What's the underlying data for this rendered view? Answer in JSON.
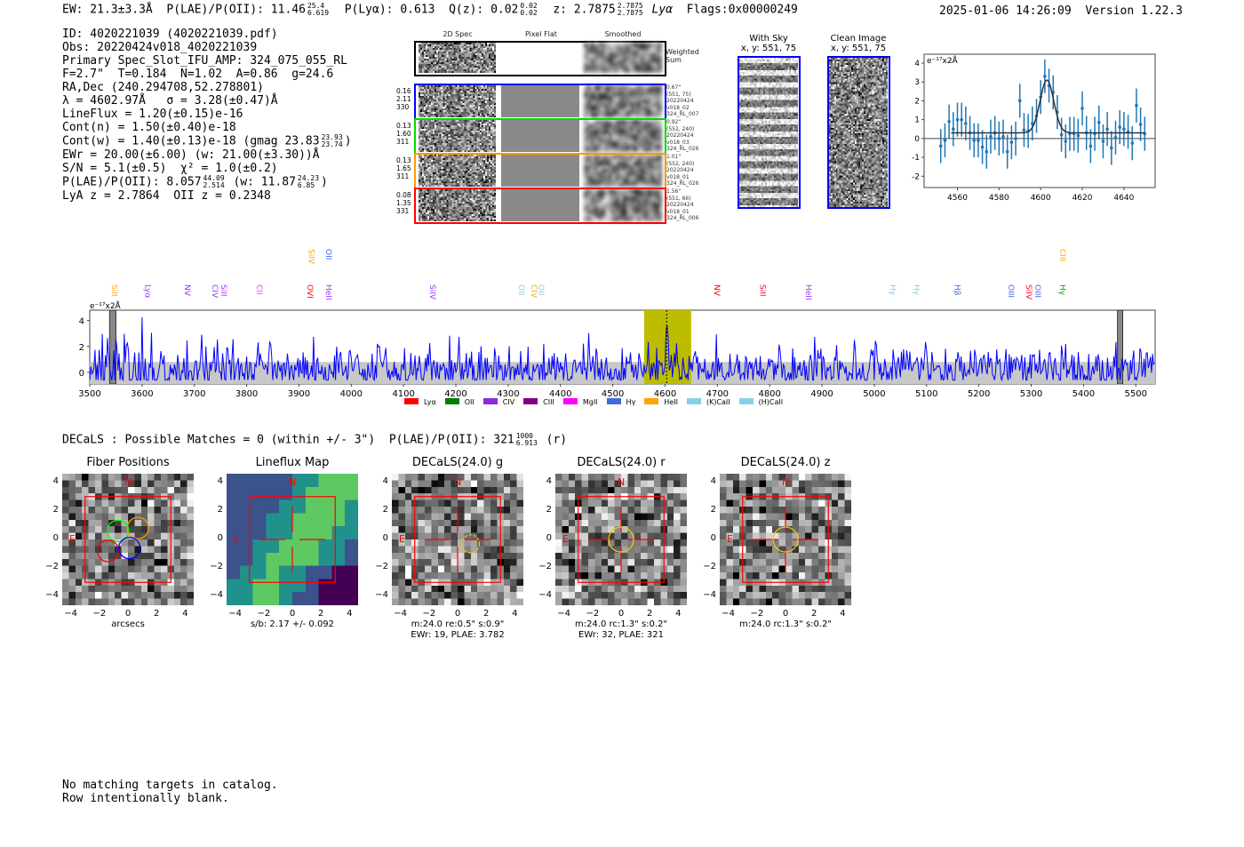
{
  "header": {
    "ew": "EW: 21.3±3.3Å",
    "plae_label": "P(LAE)/P(OII): 11.46",
    "plae_hi": "25.4",
    "plae_lo": "6.619",
    "plya": "P(Lyα): 0.613",
    "qz": "Q(z): 0.02",
    "qz_hi": "0.02",
    "qz_lo": "0.02",
    "z": "z: 2.7875",
    "z_hi": "2.7875",
    "z_lo": "2.7875",
    "z_line": "Lyα",
    "flags": "Flags:0x00000249",
    "timestamp": "2025-01-06 14:26:09",
    "version": "Version 1.22.3"
  },
  "info": {
    "id": "ID: 4020221039 (4020221039.pdf)",
    "obs": "Obs: 20220424v018_4020221039",
    "primary": "Primary Spec_Slot_IFU_AMP: 324_075_055_RL",
    "params": "F=2.7\"  T=0.184  N=1.02  A=0.86  g=24.6",
    "radec": "RA,Dec (240.294708,52.278801)",
    "lambda": "λ = 4602.97Å   σ = 3.28(±0.47)Å",
    "lineflux": "LineFlux = 1.20(±0.15)e-16",
    "contn": "Cont(n) = 1.50(±0.40)e-18",
    "contw": "Cont(w) = 1.40(±0.13)e-18 (gmag 23.83",
    "gmag_hi": "23.93",
    "gmag_lo": "23.74",
    "ewr": "EWr = 20.00(±6.00) (w: 21.00(±3.30))Å",
    "sn": "S/N = 5.1(±0.5)  χ² = 1.0(±0.2)",
    "plae": "P(LAE)/P(OII): 8.057",
    "plae_hi": "44.09",
    "plae_lo": "2.514",
    "plae_w": "(w: 11.87",
    "plae_w_hi": "24.23",
    "plae_w_lo": "6.85",
    "z": "LyA z = 2.7864  OII z = 0.2348"
  },
  "spec2d": {
    "titles": [
      "2D Spec",
      "Pixel Flat",
      "Smoothed"
    ],
    "weighted": "Weighted Sum",
    "rows": [
      {
        "color": "#0000ff",
        "left": [
          "0.16",
          "2.11",
          "330"
        ],
        "right": [
          "0.67\"",
          "(551, 75)",
          "20220424",
          "v018_02",
          "324_RL_007"
        ]
      },
      {
        "color": "#00dd00",
        "left": [
          "0.13",
          "1.60",
          "311"
        ],
        "right": [
          "0.92\"",
          "(552, 240)",
          "20220424",
          "v018_03",
          "324_RL_026"
        ]
      },
      {
        "color": "#ff9900",
        "left": [
          "0.13",
          "1.65",
          "311"
        ],
        "right": [
          "1.01\"",
          "(552, 240)",
          "20220424",
          "v018_01",
          "324_RL_026"
        ]
      },
      {
        "color": "#ff0000",
        "left": [
          "0.08",
          "1.35",
          "331"
        ],
        "right": [
          "1.56\"",
          "(551, 66)",
          "20220424",
          "v018_01",
          "324_RL_006"
        ]
      }
    ]
  },
  "sky": {
    "with_sky": "With Sky",
    "with_sky_xy": "x, y: 551, 75",
    "clean": "Clean Image",
    "clean_xy": "x, y: 551, 75"
  },
  "chart_data": [
    {
      "type": "scatter",
      "title": "",
      "ylabel": "e⁻¹⁷x2Å",
      "xlim": [
        4544,
        4655
      ],
      "ylim": [
        -2.6,
        4.47
      ],
      "xticks": [
        4560,
        4580,
        4600,
        4620,
        4640
      ],
      "yticks": [
        -2,
        -1,
        0,
        1,
        2,
        3,
        4
      ],
      "x": [
        4552,
        4554,
        4556,
        4558,
        4560,
        4562,
        4564,
        4566,
        4568,
        4570,
        4572,
        4574,
        4576,
        4578,
        4580,
        4582,
        4584,
        4586,
        4588,
        4590,
        4592,
        4594,
        4596,
        4598,
        4600,
        4602,
        4604,
        4606,
        4608,
        4610,
        4612,
        4614,
        4616,
        4618,
        4620,
        4622,
        4624,
        4626,
        4628,
        4630,
        4632,
        4634,
        4636,
        4638,
        4640,
        4642,
        4644,
        4646,
        4648,
        4650
      ],
      "y": [
        -0.4,
        -0.1,
        0.9,
        0.5,
        1.0,
        1.0,
        0.8,
        0.3,
        -0.1,
        -0.1,
        -0.45,
        -0.7,
        0.1,
        0.3,
        0.0,
        0.1,
        -0.7,
        -0.2,
        0.0,
        2.0,
        0.45,
        0.4,
        0.8,
        1.2,
        2.2,
        3.3,
        2.8,
        2.45,
        1.4,
        0.2,
        -0.15,
        0.25,
        0.25,
        0.15,
        1.6,
        0.3,
        -0.4,
        0.25,
        0.85,
        -0.15,
        0.5,
        -0.5,
        0.05,
        0.6,
        0.5,
        0.35,
        -0.25,
        1.75,
        0.75,
        0.25
      ],
      "err": 0.9,
      "fit": {
        "center": 4603,
        "amplitude": 2.8,
        "sigma": 3.28,
        "continuum": 0.3,
        "range": [
          4557,
          4650
        ]
      }
    },
    {
      "type": "line",
      "title": "",
      "ylabel": "e⁻¹⁷x2Å",
      "xlim": [
        3500,
        5537
      ],
      "ylim": [
        -0.9,
        4.8
      ],
      "xticks": [
        3500,
        3600,
        3700,
        3800,
        3900,
        4000,
        4100,
        4200,
        4300,
        4400,
        4500,
        4600,
        4700,
        4800,
        4900,
        5000,
        5100,
        5200,
        5300,
        5400,
        5500
      ],
      "yticks": [
        0,
        2,
        4
      ],
      "highlight_range": [
        4560,
        4650
      ],
      "line_center": 4603,
      "peak": 3.2,
      "noise_sigma": 1.0,
      "masked": [
        [
          3538,
          3550
        ],
        [
          5465,
          5475
        ]
      ],
      "lines": [
        {
          "name": "SiII",
          "w": 3546,
          "color": "#ffaa00",
          "row": 0
        },
        {
          "name": "Lyα",
          "w": 3610,
          "color": "#9933ff",
          "row": 0
        },
        {
          "name": "NV",
          "w": 3685,
          "color": "#9933ff",
          "row": 0
        },
        {
          "name": "CIV",
          "w": 3738,
          "color": "#9933ff",
          "row": 0
        },
        {
          "name": "SiII",
          "w": 3755,
          "color": "#aa33ff",
          "row": 0
        },
        {
          "name": "CII",
          "w": 3823,
          "color": "#ff33ff",
          "row": 0
        },
        {
          "name": "OVI",
          "w": 3920,
          "color": "#ff0000",
          "row": 0
        },
        {
          "name": "HeII",
          "w": 3955,
          "color": "#9933ff",
          "row": 0
        },
        {
          "name": "SiIV",
          "w": 4154,
          "color": "#9933ff",
          "row": 0
        },
        {
          "name": "OII",
          "w": 4324,
          "color": "#88ccee",
          "row": 0
        },
        {
          "name": "CIV",
          "w": 4348,
          "color": "#ffaa00",
          "row": 0
        },
        {
          "name": "OII",
          "w": 4361,
          "color": "#88ccee",
          "row": 0
        },
        {
          "name": "NV",
          "w": 4698,
          "color": "#ff0000",
          "row": 0
        },
        {
          "name": "SiII",
          "w": 4785,
          "color": "#ff0033",
          "row": 0
        },
        {
          "name": "HeII",
          "w": 4873,
          "color": "#9933ff",
          "row": 0
        },
        {
          "name": "Hγ",
          "w": 5034,
          "color": "#88ccee",
          "row": 0
        },
        {
          "name": "Hγ",
          "w": 5079,
          "color": "#88ccee",
          "row": 0
        },
        {
          "name": "Hβ",
          "w": 5157,
          "color": "#4466ee",
          "row": 0
        },
        {
          "name": "OIII",
          "w": 5260,
          "color": "#4466ee",
          "row": 0
        },
        {
          "name": "SiIV",
          "w": 5294,
          "color": "#ff0033",
          "row": 0
        },
        {
          "name": "OIII",
          "w": 5311,
          "color": "#4466ee",
          "row": 0
        },
        {
          "name": "Hγ",
          "w": 5359,
          "color": "#00aa00",
          "row": 0
        },
        {
          "name": "SiIV",
          "w": 3922,
          "color": "#ffaa00",
          "row": 1
        },
        {
          "name": "OII",
          "w": 3955,
          "color": "#4466ee",
          "row": 1
        },
        {
          "name": "CIII",
          "w": 5359,
          "color": "#ffaa00",
          "row": 1
        }
      ],
      "legend": [
        {
          "name": "Lyα",
          "color": "#ff0000"
        },
        {
          "name": "OII",
          "color": "#008000"
        },
        {
          "name": "CIV",
          "color": "#8a2be2"
        },
        {
          "name": "CIII",
          "color": "#800080"
        },
        {
          "name": "MgII",
          "color": "#ff00ff"
        },
        {
          "name": "Hγ",
          "color": "#4169e1"
        },
        {
          "name": "HeII",
          "color": "#ffa500"
        },
        {
          "name": "(K)CaII",
          "color": "#87ceeb"
        },
        {
          "name": "(H)CaII",
          "color": "#87ceeb"
        }
      ]
    }
  ],
  "decals": {
    "summary": "DECaLS : Possible Matches = 0 (within +/- 3\")  P(LAE)/P(OII): 321",
    "hi": "1000",
    "lo": "6.913",
    "band": "(r)"
  },
  "cutouts": [
    {
      "title": "Fiber Positions",
      "lines": [
        "arcsecs"
      ]
    },
    {
      "title": "Lineflux Map",
      "lines": [
        "s/b: 2.17 +/- 0.092"
      ]
    },
    {
      "title": "DECaLS(24.0) g",
      "lines": [
        "m:24.0  re:0.5\"  s:0.9\"",
        "EWr: 19, PLAE: 3.782"
      ]
    },
    {
      "title": "DECaLS(24.0) r",
      "lines": [
        "m:24.0 rc:1.3\"  s:0.2\"",
        "EWr: 32, PLAE: 321"
      ]
    },
    {
      "title": "DECaLS(24.0) z",
      "lines": [
        "m:24.0 rc:1.3\"  s:0.2\""
      ]
    }
  ],
  "compass": {
    "n": "N",
    "e": "E"
  },
  "axis_ticks": [
    "−4",
    "−2",
    "0",
    "2",
    "4"
  ],
  "footer": {
    "line1": "No matching targets in catalog.",
    "line2": "Row intentionally blank."
  }
}
